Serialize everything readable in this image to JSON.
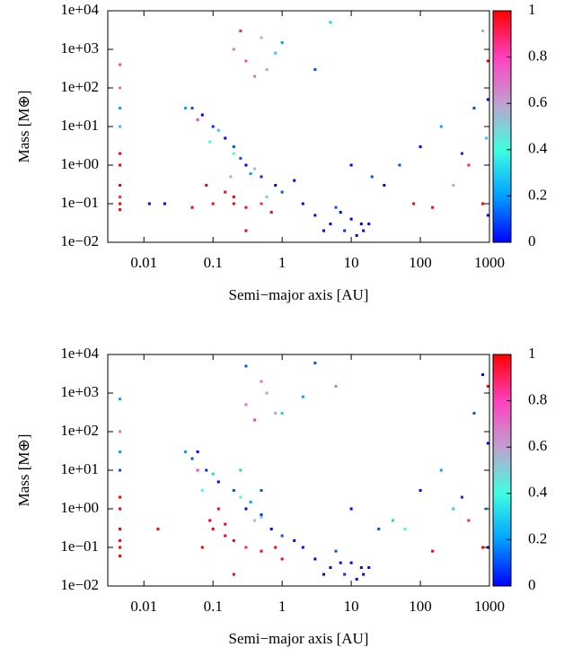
{
  "chart_data": [
    {
      "type": "scatter",
      "x_label": "Semi−major axis [AU]",
      "y_label": "Mass [M⊕]",
      "log_x": true,
      "log_y": true,
      "xlim": [
        0.003,
        1000
      ],
      "ylim": [
        0.01,
        10000
      ],
      "xticks": [
        0.01,
        0.1,
        1,
        10,
        100,
        1000
      ],
      "yticks": [
        {
          "value": 0.01,
          "label": "1e−02"
        },
        {
          "value": 0.1,
          "label": "1e−01"
        },
        {
          "value": 1,
          "label": "1e+00"
        },
        {
          "value": 10,
          "label": "1e+01"
        },
        {
          "value": 100,
          "label": "1e+02"
        },
        {
          "value": 1000,
          "label": "1e+03"
        },
        {
          "value": 10000,
          "label": "1e+04"
        }
      ],
      "clim": [
        0,
        1
      ],
      "cticks": [
        0,
        0.2,
        0.4,
        0.6,
        0.8,
        1
      ],
      "colormap": [
        "#0000ff",
        "#00a0ff",
        "#40ffe0",
        "#c0a0d0",
        "#ff40c0",
        "#ff0000"
      ],
      "x": [
        0.0045,
        0.0045,
        0.0045,
        0.0045,
        0.0045,
        0.0045,
        0.0045,
        0.0045,
        0.0045,
        0.0045,
        0.2,
        0.3,
        0.5,
        0.8,
        0.4,
        0.25,
        1,
        0.6,
        0.05,
        0.07,
        0.1,
        0.15,
        0.2,
        0.3,
        0.5,
        0.8,
        1,
        0.12,
        0.2,
        0.4,
        0.06,
        0.04,
        0.05,
        0.1,
        0.2,
        0.3,
        0.5,
        0.7,
        0.15,
        0.08,
        0.3,
        3,
        5,
        8,
        10,
        15,
        18,
        6,
        2,
        12,
        4,
        30,
        50,
        100,
        200,
        300,
        500,
        800,
        150,
        80,
        600,
        900,
        20,
        400,
        950,
        950,
        950,
        5,
        3,
        800,
        10,
        0.02,
        0.012,
        0.2,
        0.25,
        0.35,
        0.6,
        1.5,
        7,
        14,
        0.09,
        0.18
      ],
      "values": [
        0.1,
        0.3,
        1,
        2,
        0.07,
        10,
        30,
        100,
        400,
        0.15,
        1000,
        500,
        2000,
        800,
        200,
        3000,
        1500,
        300,
        30,
        20,
        10,
        5,
        3,
        1,
        0.5,
        0.3,
        0.2,
        8,
        2,
        0.8,
        15,
        30,
        0.08,
        0.1,
        0.15,
        0.08,
        0.1,
        0.06,
        0.2,
        0.3,
        0.02,
        0.05,
        0.03,
        0.02,
        0.04,
        0.02,
        0.03,
        0.08,
        0.1,
        0.015,
        0.02,
        0.3,
        1,
        3,
        10,
        0.3,
        1,
        0.1,
        0.08,
        0.1,
        30,
        5,
        0.5,
        2,
        500,
        0.05,
        50,
        5000,
        300,
        3000,
        1,
        0.1,
        0.1,
        0.1,
        1.5,
        0.6,
        0.15,
        0.4,
        0.06,
        0.03,
        4,
        0.5
      ],
      "color_values": [
        1,
        1,
        1,
        1,
        1,
        0.3,
        0.2,
        0.7,
        0.8,
        0.9,
        0.7,
        0.8,
        0.6,
        0.3,
        0.7,
        0.9,
        0.2,
        0.6,
        0.1,
        0,
        0.05,
        0,
        0.1,
        0,
        0.05,
        0,
        0.1,
        0.3,
        0.4,
        0.5,
        0.8,
        0.2,
        1,
        1,
        1,
        1,
        0.9,
        1,
        1,
        1,
        1,
        0,
        0,
        0.05,
        0,
        0,
        0,
        0.1,
        0,
        0,
        0,
        0,
        0.1,
        0,
        0.2,
        0.6,
        0.9,
        1,
        1,
        1,
        0.1,
        0.3,
        0.1,
        0.05,
        1,
        0,
        0,
        0.3,
        0.1,
        0.6,
        0,
        0,
        0,
        1,
        0.1,
        0.2,
        0.5,
        0,
        0,
        0,
        0.4,
        0.6
      ]
    },
    {
      "type": "scatter",
      "x_label": "Semi−major axis [AU]",
      "y_label": "Mass [M⊕]",
      "log_x": true,
      "log_y": true,
      "xlim": [
        0.003,
        1000
      ],
      "ylim": [
        0.01,
        10000
      ],
      "xticks": [
        0.01,
        0.1,
        1,
        10,
        100,
        1000
      ],
      "yticks": [
        {
          "value": 0.01,
          "label": "1e−02"
        },
        {
          "value": 0.1,
          "label": "1e−01"
        },
        {
          "value": 1,
          "label": "1e+00"
        },
        {
          "value": 10,
          "label": "1e+01"
        },
        {
          "value": 100,
          "label": "1e+02"
        },
        {
          "value": 1000,
          "label": "1e+03"
        },
        {
          "value": 10000,
          "label": "1e+04"
        }
      ],
      "clim": [
        0,
        1
      ],
      "cticks": [
        0,
        0.2,
        0.4,
        0.6,
        0.8,
        1
      ],
      "colormap": [
        "#0000ff",
        "#00a0ff",
        "#40ffe0",
        "#c0a0d0",
        "#ff40c0",
        "#ff0000"
      ],
      "x": [
        0.0045,
        0.0045,
        0.0045,
        0.0045,
        0.0045,
        0.0045,
        0.0045,
        0.0045,
        0.0045,
        0.0045,
        0.3,
        0.4,
        0.6,
        1,
        0.5,
        0.3,
        2,
        0.8,
        0.05,
        0.06,
        0.08,
        0.12,
        0.2,
        0.3,
        0.5,
        0.7,
        1,
        0.1,
        0.25,
        0.4,
        0.06,
        0.04,
        0.07,
        0.1,
        0.15,
        0.2,
        0.3,
        0.5,
        0.8,
        1,
        0.12,
        0.09,
        3,
        5,
        8,
        10,
        15,
        18,
        6,
        2,
        12,
        4,
        40,
        60,
        100,
        200,
        300,
        500,
        800,
        150,
        900,
        600,
        25,
        400,
        950,
        950,
        950,
        3,
        6,
        800,
        10,
        0.016,
        0.2,
        0.35,
        0.5,
        1.5,
        7,
        14,
        0.07,
        0.25,
        0.5,
        0.15
      ],
      "values": [
        0.1,
        0.3,
        1,
        2,
        0.06,
        10,
        30,
        100,
        700,
        0.15,
        500,
        200,
        1000,
        300,
        2000,
        5000,
        800,
        300,
        20,
        30,
        10,
        5,
        3,
        1,
        0.7,
        0.3,
        0.2,
        8,
        2,
        0.5,
        10,
        30,
        0.1,
        0.3,
        0.2,
        0.15,
        0.1,
        0.08,
        0.1,
        0.05,
        1,
        0.5,
        0.05,
        0.03,
        0.02,
        0.04,
        0.02,
        0.03,
        0.08,
        0.1,
        0.015,
        0.02,
        0.5,
        0.3,
        3,
        10,
        1,
        0.5,
        0.1,
        0.08,
        1,
        300,
        0.3,
        2,
        1500,
        0.1,
        50,
        6000,
        1500,
        3000,
        1,
        0.3,
        0.02,
        1.5,
        0.6,
        0.15,
        0.04,
        0.03,
        3,
        10,
        3,
        0.4
      ],
      "color_values": [
        1,
        1,
        1,
        1,
        1,
        0.1,
        0.2,
        0.7,
        0.2,
        1,
        0.7,
        0.8,
        0.6,
        0.3,
        0.7,
        0.1,
        0.2,
        0.6,
        0.1,
        0,
        0.05,
        0,
        0.1,
        0,
        0.05,
        0,
        0.1,
        0.3,
        0.4,
        0.5,
        0.8,
        0.2,
        1,
        1,
        1,
        1,
        0.9,
        1,
        1,
        1,
        1,
        1,
        0,
        0,
        0.05,
        0,
        0,
        0,
        0.1,
        0,
        0,
        0,
        0.3,
        0.4,
        0,
        0.2,
        0.3,
        0.9,
        1,
        1,
        0.3,
        0.1,
        0.1,
        0.05,
        1,
        0,
        0,
        0.1,
        0.7,
        0,
        0,
        1,
        1,
        0.2,
        0.5,
        0,
        0,
        0,
        0.4,
        0.3,
        0.1,
        1
      ]
    }
  ]
}
